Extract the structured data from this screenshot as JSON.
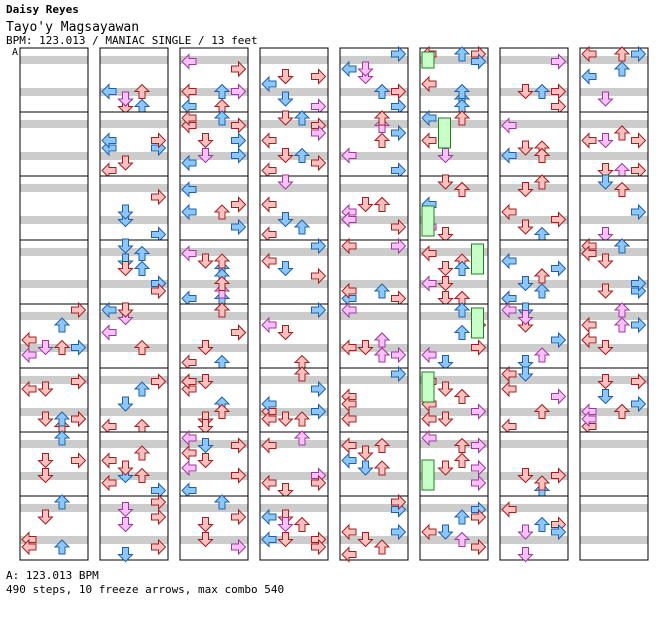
{
  "header": {
    "artist": "Daisy Reyes",
    "song_title": "Tayo'y Magsayawan",
    "info_line": "BPM: 123.013 / MANIAC SINGLE / 13 feet",
    "section_marker": "A"
  },
  "footer": {
    "bpm_line": "A: 123.013 BPM",
    "stats_line": "490 steps, 10 freeze arrows, max combo 540"
  },
  "colors": {
    "stripe": "#cccccc",
    "background": "#ffffff",
    "quarter_note_red": "#ffc0c0",
    "eighth_note_blue": "#8cc8ff",
    "sixteenth_note_pink": "#ffc0ff",
    "freeze_green": "#c8ffc8"
  },
  "chart": {
    "type": "step-chart",
    "columns": 8,
    "measures_per_column": 8,
    "lanes": [
      "left",
      "down",
      "up",
      "right"
    ]
  }
}
